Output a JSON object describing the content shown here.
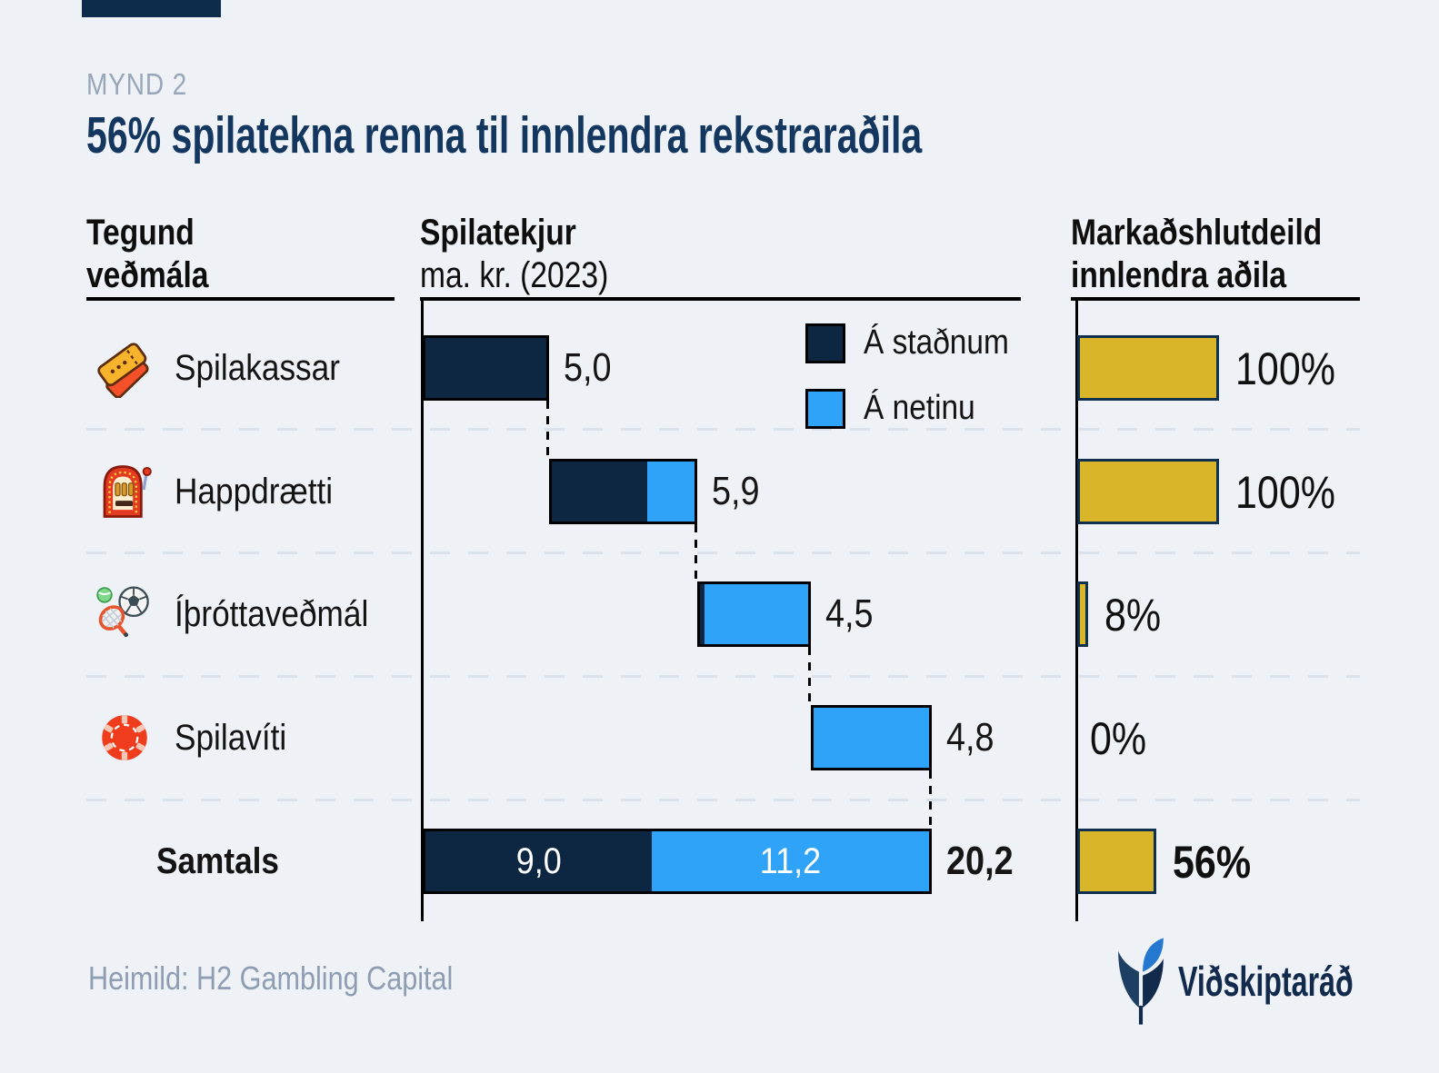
{
  "figure": {
    "kicker": "MYND 2",
    "title": "56% spilatekna renna til innlendra rekstraraðila"
  },
  "columns": {
    "type": {
      "line1": "Tegund",
      "line2": "veðmála"
    },
    "revenue": {
      "line1": "Spilatekjur",
      "line2": "ma. kr. (2023)"
    },
    "share": {
      "line1": "Markaðshlutdeild",
      "line2": "innlendra aðila"
    }
  },
  "legend": [
    {
      "label": "Á staðnum",
      "color": "#0d2742"
    },
    {
      "label": "Á netinu",
      "color": "#2ea3f8"
    }
  ],
  "footer": {
    "source": "Heimild: H2 Gambling Capital",
    "logo_text": "Viðskiptaráð"
  },
  "chart_data": {
    "type": "bar",
    "subtype": "horizontal-waterfall-with-market-share",
    "title": "56% spilatekna renna til innlendra rekstraraðila",
    "unit": "ma. kr.",
    "year": "2023",
    "legend_entries": [
      "Á staðnum",
      "Á netinu"
    ],
    "legend_position": "top-right-of-revenue-column",
    "grid": "dashed-row-separators",
    "x_axis_hidden": true,
    "categories": [
      "Spilakassar",
      "Happdrætti",
      "Íþróttaveðmál",
      "Spilavíti",
      "Samtals"
    ],
    "colors": {
      "onsite": "#0d2742",
      "online": "#2ea3f8",
      "share": "#d9b629",
      "share_border": "#10304f"
    },
    "rows": [
      {
        "label": "Spilakassar",
        "icon": "tickets-icon",
        "total": 5.0,
        "total_label": "5,0",
        "onsite": 5.0,
        "online": 0.0,
        "share_pct": 100,
        "share_label": "100%"
      },
      {
        "label": "Happdrætti",
        "icon": "slot-machine-icon",
        "total": 5.9,
        "total_label": "5,9",
        "onsite": 3.8,
        "online": 2.1,
        "share_pct": 100,
        "share_label": "100%"
      },
      {
        "label": "Íþróttaveðmál",
        "icon": "sports-icon",
        "total": 4.5,
        "total_label": "4,5",
        "onsite": 0.2,
        "online": 4.3,
        "share_pct": 8,
        "share_label": "8%"
      },
      {
        "label": "Spilavíti",
        "icon": "casino-chip-icon",
        "total": 4.8,
        "total_label": "4,8",
        "onsite": 0.0,
        "online": 4.8,
        "share_pct": 0,
        "share_label": "0%"
      },
      {
        "label": "Samtals",
        "icon": null,
        "total": 20.2,
        "total_label": "20,2",
        "onsite": 9.0,
        "onsite_label": "9,0",
        "online": 11.2,
        "online_label": "11,2",
        "share_pct": 56,
        "share_label": "56%"
      }
    ]
  }
}
